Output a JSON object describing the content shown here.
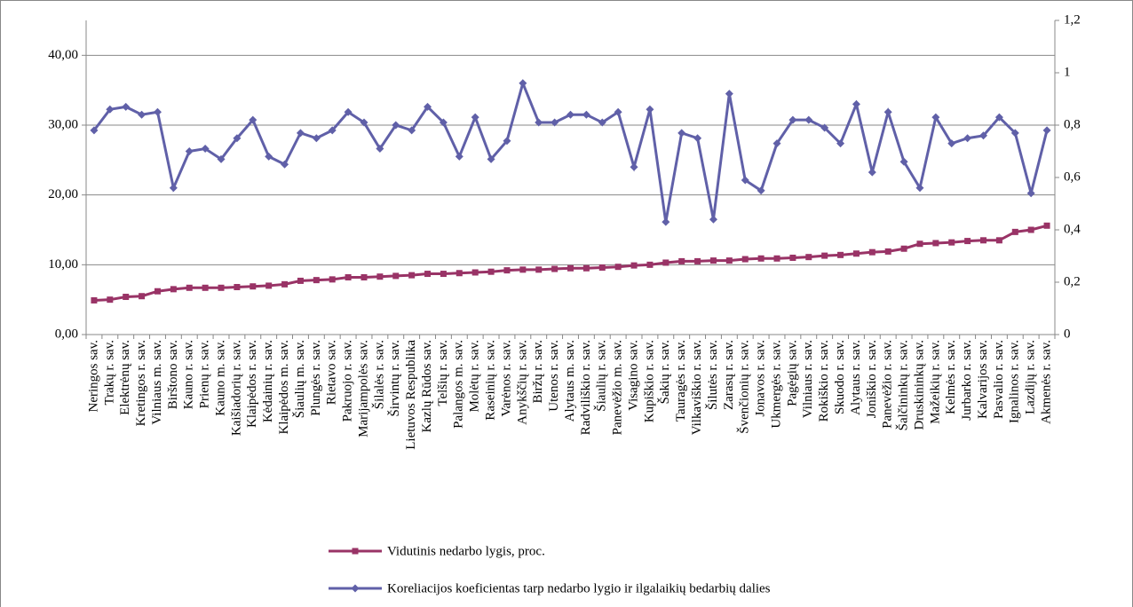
{
  "chart_data": {
    "type": "line",
    "categories": [
      "Neringos sav.",
      "Trakų r. sav.",
      "Elektrėnų sav.",
      "Kretingos r. sav.",
      "Vilniaus m. sav.",
      "Birštono sav.",
      "Kauno r. sav.",
      "Prienų r. sav.",
      "Kauno m. sav.",
      "Kaišiadorių r. sav.",
      "Klaipėdos r. sav.",
      "Kėdainių r. sav.",
      "Klaipėdos m. sav.",
      "Šiaulių m. sav.",
      "Plungės r. sav.",
      "Rietavo sav.",
      "Pakruojo r. sav.",
      "Marijampolės sav.",
      "Šilalės r. sav.",
      "Širvintų r. sav.",
      "Lietuvos Respublika",
      "Kazlų Rūdos sav.",
      "Telšių r. sav.",
      "Palangos m. sav.",
      "Molėtų r. sav.",
      "Raseinių r. sav.",
      "Varėnos r. sav.",
      "Anykščių r. sav.",
      "Biržų r. sav.",
      "Utenos r. sav.",
      "Alytaus m. sav.",
      "Radviliškio r. sav.",
      "Šiaulių r. sav.",
      "Panevėžio m. sav.",
      "Visagino sav.",
      "Kupiškio r. sav.",
      "Šakių r. sav.",
      "Tauragės r. sav.",
      "Vilkaviškio r. sav.",
      "Šilutės r. sav.",
      "Zarasų r. sav.",
      "Švenčionių r. sav.",
      "Jonavos r. sav.",
      "Ukmergės r. sav.",
      "Pagėgių sav.",
      "Vilniaus r. sav.",
      "Rokiškio r. sav.",
      "Skuodo r. sav.",
      "Alytaus r. sav.",
      "Joniškio r. sav.",
      "Panevėžio r. sav.",
      "Šalčininkų r. sav.",
      "Druskininkų sav.",
      "Mažeikių r. sav.",
      "Kelmės r. sav.",
      "Jurbarko r. sav.",
      "Kalvarijos sav.",
      "Pasvalio r. sav.",
      "Ignalinos r. sav.",
      "Lazdijų r. sav.",
      "Akmenės r. sav."
    ],
    "series": [
      {
        "name": "Vidutinis nedarbo lygis, proc.",
        "color": "#993366",
        "marker": "square",
        "values": [
          4.9,
          5.0,
          5.4,
          5.5,
          6.2,
          6.5,
          6.7,
          6.7,
          6.7,
          6.8,
          6.9,
          7.0,
          7.2,
          7.7,
          7.8,
          7.9,
          8.2,
          8.2,
          8.3,
          8.4,
          8.5,
          8.7,
          8.7,
          8.8,
          8.9,
          9.0,
          9.2,
          9.3,
          9.3,
          9.4,
          9.5,
          9.5,
          9.6,
          9.7,
          9.9,
          10.0,
          10.3,
          10.5,
          10.5,
          10.6,
          10.6,
          10.8,
          10.9,
          10.9,
          11.0,
          11.1,
          11.3,
          11.4,
          11.6,
          11.8,
          11.9,
          12.3,
          13.0,
          13.1,
          13.2,
          13.4,
          13.5,
          13.5,
          14.7,
          15.0,
          15.6
        ]
      },
      {
        "name": "Koreliacijos koeficientas tarp nedarbo lygio ir ilgalaikių bedarbių dalies",
        "color": "#6060a8",
        "marker": "diamond",
        "axis": "y2",
        "values": [
          0.78,
          0.86,
          0.87,
          0.84,
          0.85,
          0.56,
          0.7,
          0.71,
          0.67,
          0.75,
          0.82,
          0.68,
          0.65,
          0.77,
          0.75,
          0.78,
          0.85,
          0.81,
          0.71,
          0.8,
          0.78,
          0.87,
          0.81,
          0.68,
          0.83,
          0.67,
          0.74,
          0.96,
          0.81,
          0.81,
          0.84,
          0.84,
          0.81,
          0.85,
          0.64,
          0.86,
          0.43,
          0.77,
          0.75,
          0.44,
          0.92,
          0.59,
          0.55,
          0.73,
          0.82,
          0.82,
          0.79,
          0.73,
          0.88,
          0.62,
          0.85,
          0.66,
          0.56,
          0.83,
          0.73,
          0.75,
          0.76,
          0.83,
          0.77,
          0.54,
          0.78
        ]
      }
    ],
    "ylim": [
      0,
      45
    ],
    "yticks": [
      {
        "value": 0,
        "label": "0,00"
      },
      {
        "value": 10,
        "label": "10,00"
      },
      {
        "value": 20,
        "label": "20,00"
      },
      {
        "value": 30,
        "label": "30,00"
      },
      {
        "value": 40,
        "label": "40,00"
      }
    ],
    "y2lim": [
      0,
      1.2
    ],
    "y2ticks": [
      0,
      {
        "value": 0.2,
        "label": "0,2"
      },
      {
        "value": 0.4,
        "label": "0,4"
      },
      {
        "value": 0.6,
        "label": "0,6"
      },
      {
        "value": 0.8,
        "label": "0,8"
      },
      1,
      {
        "value": 1.2,
        "label": "1,2"
      }
    ],
    "grid": true,
    "legend": "bottom"
  }
}
